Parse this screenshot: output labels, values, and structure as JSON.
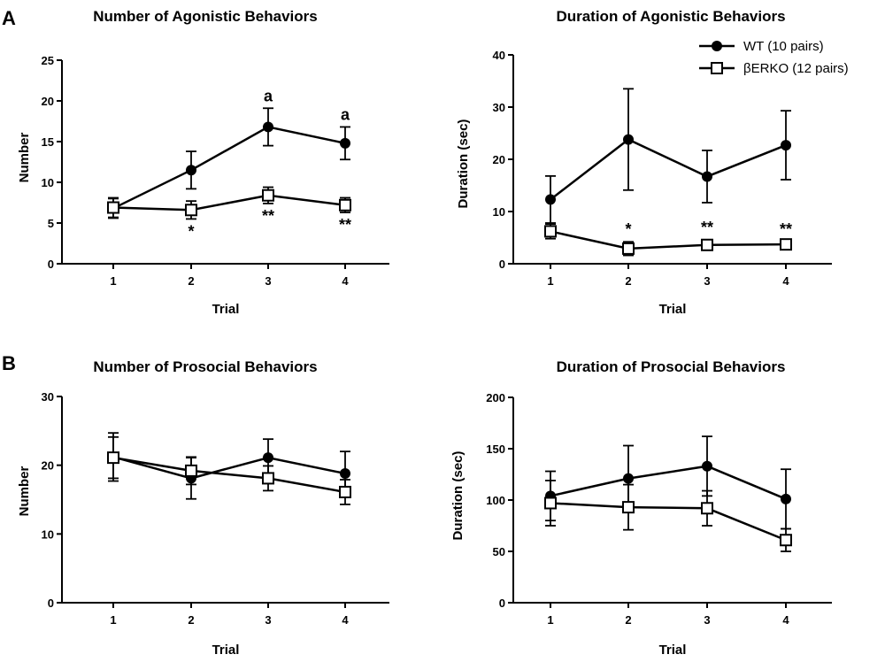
{
  "panel_labels": {
    "A": "A",
    "B": "B"
  },
  "legend": {
    "wt": "WT (10 pairs)",
    "ko": "βERKO (12 pairs)"
  },
  "chart_data": [
    {
      "type": "line",
      "title": "Number of Agonistic Behaviors",
      "xlabel": "Trial",
      "ylabel": "Number",
      "categories": [
        "1",
        "2",
        "3",
        "4"
      ],
      "ylim": [
        0,
        25
      ],
      "yticks": [
        "0",
        "5",
        "10",
        "15",
        "20",
        "25"
      ],
      "series": [
        {
          "name": "WT (10 pairs)",
          "marker": "filled-circle",
          "values": [
            6.8,
            11.5,
            16.8,
            14.8
          ],
          "errors": [
            1.2,
            2.3,
            2.3,
            2.0
          ]
        },
        {
          "name": "βERKO (12 pairs)",
          "marker": "open-square",
          "values": [
            6.9,
            6.6,
            8.4,
            7.2
          ],
          "errors": [
            1.2,
            1.1,
            1.0,
            0.9
          ]
        }
      ],
      "annotations": [
        {
          "x": "3",
          "series": "WT (10 pairs)",
          "pos": "above",
          "text": "a"
        },
        {
          "x": "4",
          "series": "WT (10 pairs)",
          "pos": "above",
          "text": "a"
        },
        {
          "x": "2",
          "series": "βERKO (12 pairs)",
          "pos": "below",
          "text": "*"
        },
        {
          "x": "3",
          "series": "βERKO (12 pairs)",
          "pos": "below",
          "text": "**"
        },
        {
          "x": "4",
          "series": "βERKO (12 pairs)",
          "pos": "below",
          "text": "**"
        }
      ]
    },
    {
      "type": "line",
      "title": "Duration of Agonistic Behaviors",
      "xlabel": "Trial",
      "ylabel": "Duration (sec)",
      "categories": [
        "1",
        "2",
        "3",
        "4"
      ],
      "ylim": [
        0,
        40
      ],
      "yticks": [
        "0",
        "10",
        "20",
        "30",
        "40"
      ],
      "series": [
        {
          "name": "WT (10 pairs)",
          "marker": "filled-circle",
          "values": [
            12.3,
            23.8,
            16.7,
            22.7
          ],
          "errors": [
            4.5,
            9.7,
            5.0,
            6.6
          ]
        },
        {
          "name": "βERKO (12 pairs)",
          "marker": "open-square",
          "values": [
            6.2,
            2.9,
            3.6,
            3.7
          ],
          "errors": [
            1.4,
            1.3,
            1.0,
            0.5
          ]
        }
      ],
      "annotations": [
        {
          "x": "2",
          "series": "βERKO (12 pairs)",
          "pos": "above",
          "text": "*"
        },
        {
          "x": "3",
          "series": "βERKO (12 pairs)",
          "pos": "above",
          "text": "**"
        },
        {
          "x": "4",
          "series": "βERKO (12 pairs)",
          "pos": "above",
          "text": "**"
        }
      ]
    },
    {
      "type": "line",
      "title": "Number of Prosocial Behaviors",
      "xlabel": "Trial",
      "ylabel": "Number",
      "categories": [
        "1",
        "2",
        "3",
        "4"
      ],
      "ylim": [
        0,
        30
      ],
      "yticks": [
        "0",
        "10",
        "20",
        "30"
      ],
      "series": [
        {
          "name": "WT (10 pairs)",
          "marker": "filled-circle",
          "values": [
            21.2,
            18.1,
            21.1,
            18.8
          ],
          "errors": [
            3.5,
            3.0,
            2.7,
            3.2
          ]
        },
        {
          "name": "βERKO (12 pairs)",
          "marker": "open-square",
          "values": [
            21.1,
            19.2,
            18.1,
            16.1
          ],
          "errors": [
            3.0,
            2.0,
            1.8,
            1.8
          ]
        }
      ],
      "annotations": []
    },
    {
      "type": "line",
      "title": "Duration of Prosocial Behaviors",
      "xlabel": "Trial",
      "ylabel": "Duration (sec)",
      "categories": [
        "1",
        "2",
        "3",
        "4"
      ],
      "ylim": [
        0,
        200
      ],
      "yticks": [
        "0",
        "50",
        "100",
        "150",
        "200"
      ],
      "series": [
        {
          "name": "WT (10 pairs)",
          "marker": "filled-circle",
          "values": [
            104,
            121,
            133,
            101
          ],
          "errors": [
            24,
            32,
            29,
            29
          ]
        },
        {
          "name": "βERKO (12 pairs)",
          "marker": "open-square",
          "values": [
            97,
            93,
            92,
            61
          ],
          "errors": [
            22,
            22,
            17,
            11
          ]
        }
      ],
      "annotations": []
    }
  ]
}
